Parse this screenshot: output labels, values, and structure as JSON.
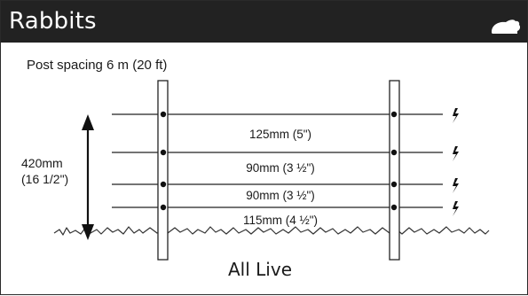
{
  "header": {
    "title": "Rabbits",
    "icon": "rabbit-icon",
    "background": "#222222"
  },
  "diagram": {
    "post_spacing": "Post spacing 6 m (20 ft)",
    "height": {
      "line1": "420mm",
      "line2": "(16 1/2\")"
    },
    "wire_gaps": [
      "125mm (5\")",
      "90mm (3 ½\")",
      "90mm (3 ½\")",
      "115mm (4 ½\")"
    ],
    "wire_count": 4,
    "mode": "All Live",
    "live_icon": "lightning-bolt-icon"
  }
}
